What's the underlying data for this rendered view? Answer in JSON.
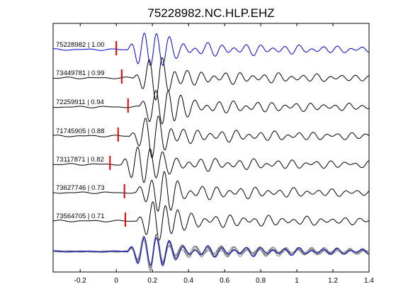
{
  "chart_data": {
    "type": "line",
    "title": "75228982.NC.HLP.EHZ",
    "xlabel": "",
    "ylabel": "",
    "xlim": [
      -0.35,
      1.4
    ],
    "xticks": [
      -0.2,
      0,
      0.2,
      0.4,
      0.6,
      0.8,
      1,
      1.2,
      1.4
    ],
    "xtick_labels": [
      "-0.2",
      "0",
      "0.2",
      "0.4",
      "0.6",
      "0.8",
      "1",
      "1.2",
      "1.4"
    ],
    "grid": false,
    "colors": {
      "reference": "#0000cc",
      "trace": "#000000",
      "stack": "#808080",
      "pick": "#e00000"
    },
    "series": [
      {
        "name": "75228982 | 1.00",
        "id": "75228982",
        "cc": 1.0,
        "pick_time": 0.0,
        "reference": true
      },
      {
        "name": "73449781 | 0.99",
        "id": "73449781",
        "cc": 0.99,
        "pick_time": 0.03
      },
      {
        "name": "72259911 | 0.94",
        "id": "72259911",
        "cc": 0.94,
        "pick_time": 0.065
      },
      {
        "name": "71745905 | 0.88",
        "id": "71745905",
        "cc": 0.88,
        "pick_time": 0.01
      },
      {
        "name": "73117871 | 0.82",
        "id": "73117871",
        "cc": 0.82,
        "pick_time": -0.035
      },
      {
        "name": "73627746 | 0.73",
        "id": "73627746",
        "cc": 0.73,
        "pick_time": 0.045
      },
      {
        "name": "73564705 | 0.71",
        "id": "73564705",
        "cc": 0.71,
        "pick_time": 0.05
      }
    ],
    "stack": {
      "description_label": "",
      "traces_overlaid": 7
    }
  }
}
